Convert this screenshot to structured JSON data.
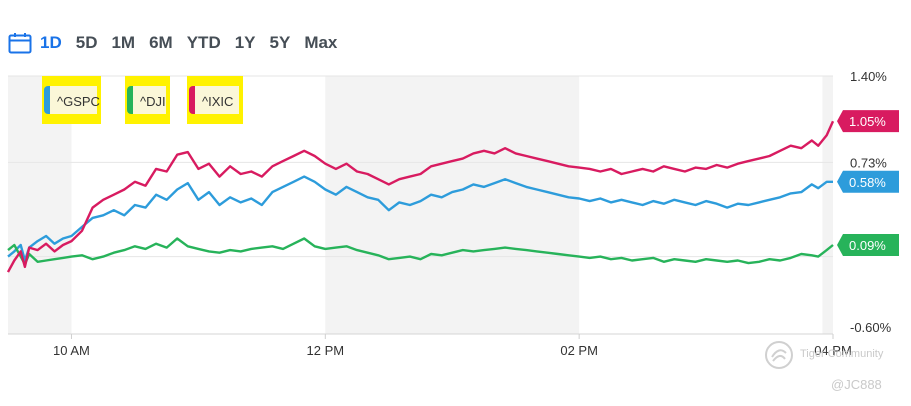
{
  "range_selector": {
    "icon": "calendar-icon",
    "options": [
      "1D",
      "5D",
      "1M",
      "6M",
      "YTD",
      "1Y",
      "5Y",
      "Max"
    ],
    "active": "1D"
  },
  "colors": {
    "gspc": "#2d9cdb",
    "dji": "#27b35a",
    "ixic": "#d81b60",
    "active_range": "#1a73e8"
  },
  "watermark": {
    "brand": "Tiger Community",
    "user": "@JC888"
  },
  "chart_data": {
    "type": "line",
    "title": "",
    "xlabel": "",
    "ylabel": "",
    "x_ticks": [
      "10 AM",
      "12 PM",
      "02 PM",
      "04 PM"
    ],
    "y_ticks": [
      "1.40%",
      "0.73%",
      "-0.60%"
    ],
    "ylim": [
      -0.6,
      1.4
    ],
    "grid": true,
    "legend": "top-left",
    "shaded_bands": [
      [
        "09:30",
        "10:00"
      ],
      [
        "12:00",
        "14:00"
      ],
      [
        "15:55",
        "16:00"
      ]
    ],
    "series": [
      {
        "name": "^GSPC",
        "last_label": "0.58%",
        "points": [
          [
            "09:30",
            0.0
          ],
          [
            "09:33",
            0.04
          ],
          [
            "09:36",
            0.09
          ],
          [
            "09:38",
            -0.03
          ],
          [
            "09:40",
            0.07
          ],
          [
            "09:44",
            0.12
          ],
          [
            "09:48",
            0.16
          ],
          [
            "09:52",
            0.1
          ],
          [
            "09:56",
            0.14
          ],
          [
            "10:00",
            0.16
          ],
          [
            "10:05",
            0.23
          ],
          [
            "10:10",
            0.3
          ],
          [
            "10:15",
            0.32
          ],
          [
            "10:20",
            0.36
          ],
          [
            "10:25",
            0.32
          ],
          [
            "10:30",
            0.4
          ],
          [
            "10:35",
            0.38
          ],
          [
            "10:40",
            0.48
          ],
          [
            "10:45",
            0.44
          ],
          [
            "10:50",
            0.52
          ],
          [
            "10:55",
            0.57
          ],
          [
            "11:00",
            0.44
          ],
          [
            "11:05",
            0.5
          ],
          [
            "11:10",
            0.4
          ],
          [
            "11:15",
            0.46
          ],
          [
            "11:20",
            0.42
          ],
          [
            "11:25",
            0.45
          ],
          [
            "11:30",
            0.4
          ],
          [
            "11:35",
            0.5
          ],
          [
            "11:40",
            0.54
          ],
          [
            "11:45",
            0.58
          ],
          [
            "11:50",
            0.62
          ],
          [
            "11:55",
            0.58
          ],
          [
            "12:00",
            0.52
          ],
          [
            "12:05",
            0.48
          ],
          [
            "12:10",
            0.54
          ],
          [
            "12:15",
            0.5
          ],
          [
            "12:20",
            0.46
          ],
          [
            "12:25",
            0.44
          ],
          [
            "12:30",
            0.36
          ],
          [
            "12:35",
            0.42
          ],
          [
            "12:40",
            0.4
          ],
          [
            "12:45",
            0.43
          ],
          [
            "12:50",
            0.48
          ],
          [
            "12:55",
            0.46
          ],
          [
            "13:00",
            0.5
          ],
          [
            "13:05",
            0.52
          ],
          [
            "13:10",
            0.56
          ],
          [
            "13:15",
            0.54
          ],
          [
            "13:20",
            0.57
          ],
          [
            "13:25",
            0.6
          ],
          [
            "13:30",
            0.57
          ],
          [
            "13:35",
            0.54
          ],
          [
            "13:40",
            0.52
          ],
          [
            "13:45",
            0.5
          ],
          [
            "13:50",
            0.48
          ],
          [
            "13:55",
            0.46
          ],
          [
            "14:00",
            0.45
          ],
          [
            "14:05",
            0.43
          ],
          [
            "14:10",
            0.45
          ],
          [
            "14:15",
            0.42
          ],
          [
            "14:20",
            0.44
          ],
          [
            "14:25",
            0.42
          ],
          [
            "14:30",
            0.4
          ],
          [
            "14:35",
            0.43
          ],
          [
            "14:40",
            0.41
          ],
          [
            "14:45",
            0.44
          ],
          [
            "14:50",
            0.42
          ],
          [
            "14:55",
            0.4
          ],
          [
            "15:00",
            0.43
          ],
          [
            "15:05",
            0.41
          ],
          [
            "15:10",
            0.38
          ],
          [
            "15:15",
            0.41
          ],
          [
            "15:20",
            0.4
          ],
          [
            "15:25",
            0.42
          ],
          [
            "15:30",
            0.44
          ],
          [
            "15:35",
            0.46
          ],
          [
            "15:40",
            0.49
          ],
          [
            "15:45",
            0.5
          ],
          [
            "15:50",
            0.56
          ],
          [
            "15:53",
            0.53
          ],
          [
            "15:57",
            0.58
          ],
          [
            "16:00",
            0.58
          ]
        ]
      },
      {
        "name": "^DJI",
        "last_label": "0.09%",
        "points": [
          [
            "09:30",
            0.05
          ],
          [
            "09:33",
            0.09
          ],
          [
            "09:36",
            0.0
          ],
          [
            "09:38",
            -0.06
          ],
          [
            "09:40",
            0.02
          ],
          [
            "09:44",
            -0.04
          ],
          [
            "09:48",
            -0.03
          ],
          [
            "09:52",
            -0.02
          ],
          [
            "09:56",
            -0.01
          ],
          [
            "10:00",
            0.0
          ],
          [
            "10:05",
            0.01
          ],
          [
            "10:10",
            -0.02
          ],
          [
            "10:15",
            0.0
          ],
          [
            "10:20",
            0.03
          ],
          [
            "10:25",
            0.05
          ],
          [
            "10:30",
            0.08
          ],
          [
            "10:35",
            0.06
          ],
          [
            "10:40",
            0.1
          ],
          [
            "10:45",
            0.07
          ],
          [
            "10:50",
            0.14
          ],
          [
            "10:55",
            0.08
          ],
          [
            "11:00",
            0.06
          ],
          [
            "11:05",
            0.04
          ],
          [
            "11:10",
            0.03
          ],
          [
            "11:15",
            0.05
          ],
          [
            "11:20",
            0.04
          ],
          [
            "11:25",
            0.06
          ],
          [
            "11:30",
            0.07
          ],
          [
            "11:35",
            0.08
          ],
          [
            "11:40",
            0.06
          ],
          [
            "11:45",
            0.1
          ],
          [
            "11:50",
            0.14
          ],
          [
            "11:55",
            0.08
          ],
          [
            "12:00",
            0.06
          ],
          [
            "12:05",
            0.07
          ],
          [
            "12:10",
            0.08
          ],
          [
            "12:15",
            0.05
          ],
          [
            "12:20",
            0.03
          ],
          [
            "12:25",
            0.01
          ],
          [
            "12:30",
            -0.02
          ],
          [
            "12:35",
            -0.01
          ],
          [
            "12:40",
            0.0
          ],
          [
            "12:45",
            -0.02
          ],
          [
            "12:50",
            0.02
          ],
          [
            "12:55",
            0.01
          ],
          [
            "13:00",
            0.03
          ],
          [
            "13:05",
            0.05
          ],
          [
            "13:10",
            0.04
          ],
          [
            "13:15",
            0.05
          ],
          [
            "13:20",
            0.06
          ],
          [
            "13:25",
            0.07
          ],
          [
            "13:30",
            0.06
          ],
          [
            "13:35",
            0.05
          ],
          [
            "13:40",
            0.04
          ],
          [
            "13:45",
            0.03
          ],
          [
            "13:50",
            0.02
          ],
          [
            "13:55",
            0.01
          ],
          [
            "14:00",
            0.0
          ],
          [
            "14:05",
            -0.01
          ],
          [
            "14:10",
            0.0
          ],
          [
            "14:15",
            -0.02
          ],
          [
            "14:20",
            -0.01
          ],
          [
            "14:25",
            -0.03
          ],
          [
            "14:30",
            -0.02
          ],
          [
            "14:35",
            -0.01
          ],
          [
            "14:40",
            -0.04
          ],
          [
            "14:45",
            -0.02
          ],
          [
            "14:50",
            -0.03
          ],
          [
            "14:55",
            -0.04
          ],
          [
            "15:00",
            -0.02
          ],
          [
            "15:05",
            -0.03
          ],
          [
            "15:10",
            -0.04
          ],
          [
            "15:15",
            -0.03
          ],
          [
            "15:20",
            -0.05
          ],
          [
            "15:25",
            -0.04
          ],
          [
            "15:30",
            -0.02
          ],
          [
            "15:35",
            -0.03
          ],
          [
            "15:40",
            -0.01
          ],
          [
            "15:45",
            0.02
          ],
          [
            "15:50",
            0.01
          ],
          [
            "15:53",
            0.0
          ],
          [
            "15:57",
            0.05
          ],
          [
            "16:00",
            0.09
          ]
        ]
      },
      {
        "name": "^IXIC",
        "last_label": "1.05%",
        "points": [
          [
            "09:30",
            -0.12
          ],
          [
            "09:33",
            -0.03
          ],
          [
            "09:36",
            0.04
          ],
          [
            "09:38",
            -0.08
          ],
          [
            "09:40",
            0.07
          ],
          [
            "09:44",
            0.05
          ],
          [
            "09:48",
            0.1
          ],
          [
            "09:52",
            0.04
          ],
          [
            "09:56",
            0.09
          ],
          [
            "10:00",
            0.12
          ],
          [
            "10:05",
            0.2
          ],
          [
            "10:10",
            0.38
          ],
          [
            "10:15",
            0.44
          ],
          [
            "10:20",
            0.48
          ],
          [
            "10:25",
            0.52
          ],
          [
            "10:30",
            0.58
          ],
          [
            "10:35",
            0.55
          ],
          [
            "10:40",
            0.68
          ],
          [
            "10:45",
            0.66
          ],
          [
            "10:50",
            0.79
          ],
          [
            "10:55",
            0.81
          ],
          [
            "11:00",
            0.68
          ],
          [
            "11:05",
            0.72
          ],
          [
            "11:10",
            0.62
          ],
          [
            "11:15",
            0.7
          ],
          [
            "11:20",
            0.64
          ],
          [
            "11:25",
            0.66
          ],
          [
            "11:30",
            0.62
          ],
          [
            "11:35",
            0.7
          ],
          [
            "11:40",
            0.74
          ],
          [
            "11:45",
            0.78
          ],
          [
            "11:50",
            0.82
          ],
          [
            "11:55",
            0.78
          ],
          [
            "12:00",
            0.72
          ],
          [
            "12:05",
            0.68
          ],
          [
            "12:10",
            0.72
          ],
          [
            "12:15",
            0.66
          ],
          [
            "12:20",
            0.64
          ],
          [
            "12:25",
            0.6
          ],
          [
            "12:30",
            0.56
          ],
          [
            "12:35",
            0.6
          ],
          [
            "12:40",
            0.62
          ],
          [
            "12:45",
            0.64
          ],
          [
            "12:50",
            0.7
          ],
          [
            "12:55",
            0.72
          ],
          [
            "13:00",
            0.74
          ],
          [
            "13:05",
            0.76
          ],
          [
            "13:10",
            0.8
          ],
          [
            "13:15",
            0.82
          ],
          [
            "13:20",
            0.8
          ],
          [
            "13:25",
            0.84
          ],
          [
            "13:30",
            0.8
          ],
          [
            "13:35",
            0.78
          ],
          [
            "13:40",
            0.76
          ],
          [
            "13:45",
            0.74
          ],
          [
            "13:50",
            0.72
          ],
          [
            "13:55",
            0.7
          ],
          [
            "14:00",
            0.69
          ],
          [
            "14:05",
            0.68
          ],
          [
            "14:10",
            0.66
          ],
          [
            "14:15",
            0.68
          ],
          [
            "14:20",
            0.64
          ],
          [
            "14:25",
            0.66
          ],
          [
            "14:30",
            0.68
          ],
          [
            "14:35",
            0.66
          ],
          [
            "14:40",
            0.7
          ],
          [
            "14:45",
            0.68
          ],
          [
            "14:50",
            0.66
          ],
          [
            "14:55",
            0.69
          ],
          [
            "15:00",
            0.68
          ],
          [
            "15:05",
            0.71
          ],
          [
            "15:10",
            0.69
          ],
          [
            "15:15",
            0.72
          ],
          [
            "15:20",
            0.74
          ],
          [
            "15:25",
            0.76
          ],
          [
            "15:30",
            0.78
          ],
          [
            "15:35",
            0.82
          ],
          [
            "15:40",
            0.86
          ],
          [
            "15:45",
            0.84
          ],
          [
            "15:50",
            0.9
          ],
          [
            "15:53",
            0.86
          ],
          [
            "15:57",
            0.94
          ],
          [
            "16:00",
            1.05
          ]
        ]
      }
    ]
  }
}
